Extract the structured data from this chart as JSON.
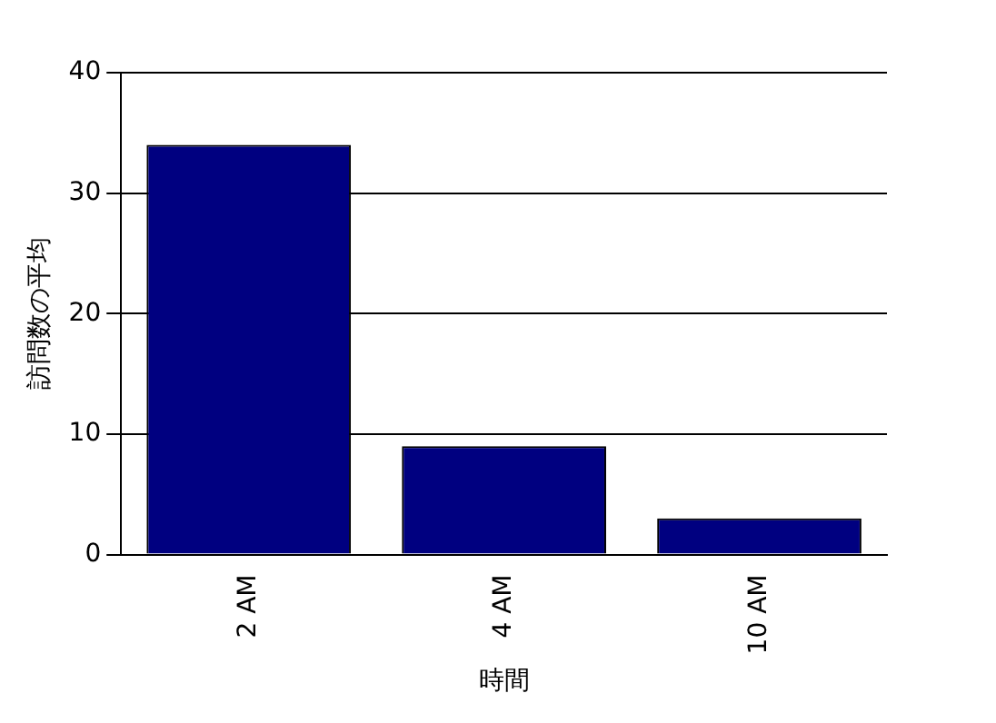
{
  "chart_data": {
    "type": "bar",
    "xlabel": "時間",
    "ylabel": "訪問数の平均",
    "categories": [
      "2 AM",
      "4 AM",
      "10 AM"
    ],
    "values": [
      34,
      9,
      3
    ],
    "color": "#000080",
    "ylim": [
      0,
      40
    ],
    "yticks": [
      0,
      10,
      20,
      30,
      40
    ],
    "grid": "y"
  }
}
